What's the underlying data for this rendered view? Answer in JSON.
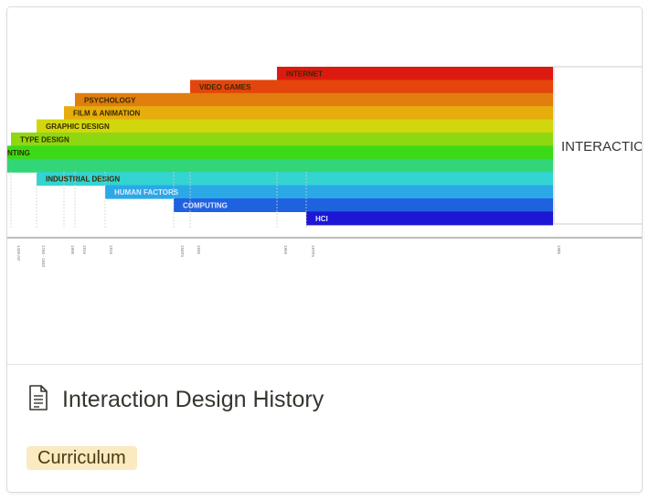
{
  "card": {
    "title": "Interaction Design History",
    "icon": "document-icon",
    "tag": "Curriculum",
    "tag_color": "#fbe9c1"
  },
  "cover": {
    "headline": "INTERACTIO",
    "bars": [
      {
        "label": "INTERNET",
        "color": "#dd1a10"
      },
      {
        "label": "VIDEO GAMES",
        "color": "#e4450c"
      },
      {
        "label": "PSYCHOLOGY",
        "color": "#e07e0e"
      },
      {
        "label": "FILM & ANIMATION",
        "color": "#e6ad0c"
      },
      {
        "label": "GRAPHIC DESIGN",
        "color": "#d2d60d"
      },
      {
        "label": "TYPE DESIGN",
        "color": "#8ed812"
      },
      {
        "label": "NTING",
        "color": "#3cd917"
      },
      {
        "label": "",
        "color": "#33d677"
      },
      {
        "label": "INDUSTRIAL DESIGN",
        "color": "#33d4d2"
      },
      {
        "label": "HUMAN FACTORS",
        "color": "#2aa9e6"
      },
      {
        "label": "COMPUTING",
        "color": "#1f62df"
      },
      {
        "label": "HCI",
        "color": "#1d16d4"
      }
    ],
    "ticks": [
      "1439 AD",
      "1760 - 1840",
      "1906",
      "1916",
      "1916",
      "1940's",
      "1945",
      "1969",
      "1970's",
      "1985"
    ]
  }
}
